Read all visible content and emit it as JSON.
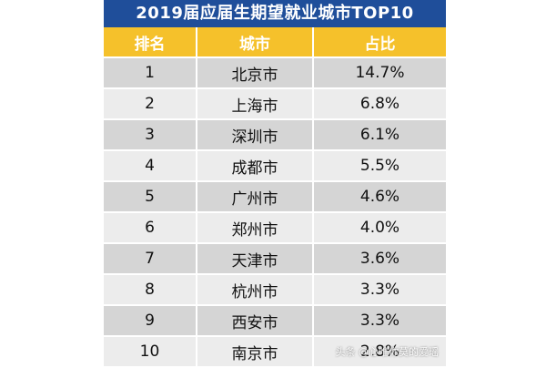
{
  "title": "2019届应届生期望就业城市TOP10",
  "headers": [
    "排名",
    "城市",
    "占比"
  ],
  "rows": [
    {
      "rank": "1",
      "city": "北京市",
      "share": "14.7%"
    },
    {
      "rank": "2",
      "city": "上海市",
      "share": "6.8%"
    },
    {
      "rank": "3",
      "city": "深圳市",
      "share": "6.1%"
    },
    {
      "rank": "4",
      "city": "成都市",
      "share": "5.5%"
    },
    {
      "rank": "5",
      "city": "广州市",
      "share": "4.6%"
    },
    {
      "rank": "6",
      "city": "郑州市",
      "share": "4.0%"
    },
    {
      "rank": "7",
      "city": "天津市",
      "share": "3.6%"
    },
    {
      "rank": "8",
      "city": "杭州市",
      "share": "3.3%"
    },
    {
      "rank": "9",
      "city": "西安市",
      "share": "3.3%"
    },
    {
      "rank": "10",
      "city": "南京市",
      "share": "2.8%"
    }
  ],
  "watermark": "头条 @心唯你莫的爱瑶",
  "colors": {
    "title_bg": "#1f4e9a",
    "header_bg": "#f5c12b",
    "row_dark": "#d5d5d5",
    "row_light": "#ececec"
  }
}
